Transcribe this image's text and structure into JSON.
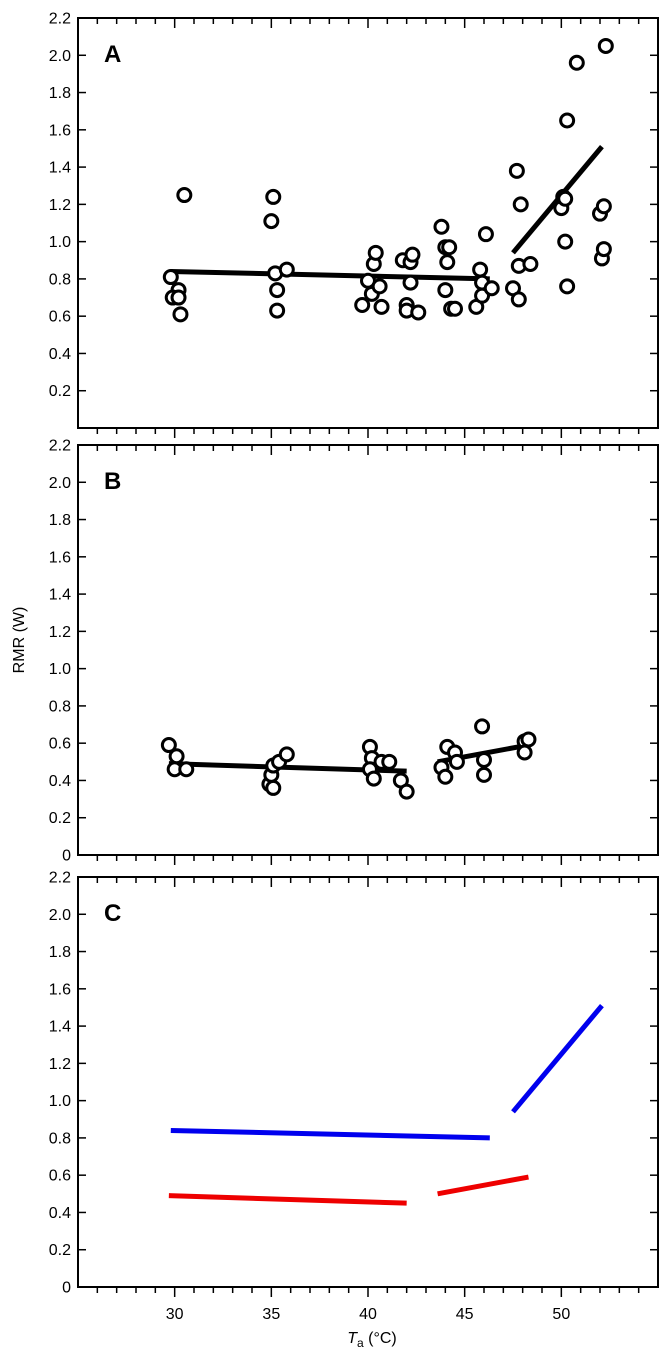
{
  "figure": {
    "ylabel": "RMR (W)",
    "xlabel_main": "T",
    "xlabel_sub": "a",
    "xlabel_unit": " (°C)"
  },
  "chart_data": [
    {
      "type": "scatter",
      "panel": "A",
      "xlim": [
        25,
        55
      ],
      "ylim": [
        0,
        2.2
      ],
      "x_ticks": [
        30,
        35,
        40,
        45,
        50
      ],
      "x_ticks_labeled": false,
      "y_ticks": [
        0.2,
        0.4,
        0.6,
        0.8,
        1.0,
        1.2,
        1.4,
        1.6,
        1.8,
        2.0,
        2.2
      ],
      "y_tick_labels": [
        "0.2",
        "0.4",
        "0.6",
        "0.8",
        "1.0",
        "1.2",
        "1.4",
        "1.6",
        "1.8",
        "2.0",
        "2.2"
      ],
      "marker": "open-circle",
      "points": [
        [
          29.8,
          0.81
        ],
        [
          30.2,
          0.74
        ],
        [
          29.9,
          0.7
        ],
        [
          30.2,
          0.7
        ],
        [
          30.3,
          0.61
        ],
        [
          30.5,
          1.25
        ],
        [
          35.1,
          1.24
        ],
        [
          35.0,
          1.11
        ],
        [
          35.2,
          0.83
        ],
        [
          35.8,
          0.85
        ],
        [
          35.3,
          0.74
        ],
        [
          35.3,
          0.63
        ],
        [
          39.7,
          0.66
        ],
        [
          40.0,
          0.79
        ],
        [
          40.2,
          0.72
        ],
        [
          40.3,
          0.88
        ],
        [
          40.4,
          0.94
        ],
        [
          40.6,
          0.76
        ],
        [
          40.7,
          0.65
        ],
        [
          41.8,
          0.9
        ],
        [
          42.0,
          0.66
        ],
        [
          42.0,
          0.63
        ],
        [
          42.2,
          0.89
        ],
        [
          42.2,
          0.78
        ],
        [
          42.3,
          0.93
        ],
        [
          42.6,
          0.62
        ],
        [
          43.8,
          1.08
        ],
        [
          44.0,
          0.97
        ],
        [
          44.2,
          0.97
        ],
        [
          44.1,
          0.89
        ],
        [
          44.0,
          0.74
        ],
        [
          44.3,
          0.64
        ],
        [
          44.5,
          0.64
        ],
        [
          45.6,
          0.65
        ],
        [
          45.8,
          0.85
        ],
        [
          45.9,
          0.78
        ],
        [
          45.9,
          0.71
        ],
        [
          46.1,
          1.04
        ],
        [
          46.4,
          0.75
        ],
        [
          47.5,
          0.75
        ],
        [
          47.7,
          1.38
        ],
        [
          47.8,
          0.87
        ],
        [
          47.8,
          0.69
        ],
        [
          47.9,
          1.2
        ],
        [
          48.4,
          0.88
        ],
        [
          50.0,
          1.18
        ],
        [
          50.1,
          1.24
        ],
        [
          50.2,
          1.23
        ],
        [
          50.2,
          1.0
        ],
        [
          50.3,
          1.65
        ],
        [
          50.3,
          0.76
        ],
        [
          50.8,
          1.96
        ],
        [
          52.0,
          1.15
        ],
        [
          52.1,
          0.91
        ],
        [
          52.2,
          0.96
        ],
        [
          52.2,
          1.19
        ],
        [
          52.3,
          2.05
        ]
      ],
      "fit_lines": [
        {
          "x": [
            29.8,
            46.3
          ],
          "y": [
            0.84,
            0.8
          ]
        },
        {
          "x": [
            47.5,
            52.1
          ],
          "y": [
            0.94,
            1.51
          ]
        }
      ]
    },
    {
      "type": "scatter",
      "panel": "B",
      "xlim": [
        25,
        55
      ],
      "ylim": [
        0,
        2.2
      ],
      "x_ticks": [
        30,
        35,
        40,
        45,
        50
      ],
      "x_ticks_labeled": false,
      "y_ticks": [
        0,
        0.2,
        0.4,
        0.6,
        0.8,
        1.0,
        1.2,
        1.4,
        1.6,
        1.8,
        2.0,
        2.2
      ],
      "y_tick_labels": [
        "0",
        "0.2",
        "0.4",
        "0.6",
        "0.8",
        "1.0",
        "1.2",
        "1.4",
        "1.6",
        "1.8",
        "2.0",
        "2.2"
      ],
      "marker": "open-circle",
      "points": [
        [
          29.7,
          0.59
        ],
        [
          30.1,
          0.53
        ],
        [
          30.0,
          0.46
        ],
        [
          30.6,
          0.46
        ],
        [
          34.9,
          0.38
        ],
        [
          35.0,
          0.43
        ],
        [
          35.1,
          0.48
        ],
        [
          35.1,
          0.36
        ],
        [
          35.4,
          0.5
        ],
        [
          35.8,
          0.54
        ],
        [
          40.1,
          0.58
        ],
        [
          40.2,
          0.52
        ],
        [
          40.1,
          0.46
        ],
        [
          40.3,
          0.41
        ],
        [
          40.7,
          0.5
        ],
        [
          41.1,
          0.5
        ],
        [
          41.7,
          0.4
        ],
        [
          42.0,
          0.34
        ],
        [
          43.8,
          0.47
        ],
        [
          44.0,
          0.42
        ],
        [
          44.1,
          0.58
        ],
        [
          44.5,
          0.55
        ],
        [
          44.6,
          0.5
        ],
        [
          45.9,
          0.69
        ],
        [
          46.0,
          0.51
        ],
        [
          46.0,
          0.43
        ],
        [
          48.1,
          0.61
        ],
        [
          48.3,
          0.62
        ],
        [
          48.1,
          0.55
        ]
      ],
      "fit_lines": [
        {
          "x": [
            29.7,
            42.0
          ],
          "y": [
            0.49,
            0.45
          ]
        },
        {
          "x": [
            43.6,
            48.3
          ],
          "y": [
            0.5,
            0.59
          ]
        }
      ]
    },
    {
      "type": "line",
      "panel": "C",
      "xlim": [
        25,
        55
      ],
      "ylim": [
        0,
        2.2
      ],
      "x_ticks": [
        30,
        35,
        40,
        45,
        50
      ],
      "x_ticks_labeled": true,
      "x_tick_labels": [
        "30",
        "35",
        "40",
        "45",
        "50"
      ],
      "y_ticks": [
        0,
        0.2,
        0.4,
        0.6,
        0.8,
        1.0,
        1.2,
        1.4,
        1.6,
        1.8,
        2.0,
        2.2
      ],
      "y_tick_labels": [
        "0",
        "0.2",
        "0.4",
        "0.6",
        "0.8",
        "1.0",
        "1.2",
        "1.4",
        "1.6",
        "1.8",
        "2.0",
        "2.2"
      ],
      "fit_lines": [
        {
          "color": "#0000ee",
          "x": [
            29.8,
            46.3
          ],
          "y": [
            0.84,
            0.8
          ]
        },
        {
          "color": "#0000ee",
          "x": [
            47.5,
            52.1
          ],
          "y": [
            0.94,
            1.51
          ]
        },
        {
          "color": "#ee0000",
          "x": [
            29.7,
            42.0
          ],
          "y": [
            0.49,
            0.45
          ]
        },
        {
          "color": "#ee0000",
          "x": [
            43.6,
            48.3
          ],
          "y": [
            0.5,
            0.59
          ]
        }
      ]
    }
  ]
}
